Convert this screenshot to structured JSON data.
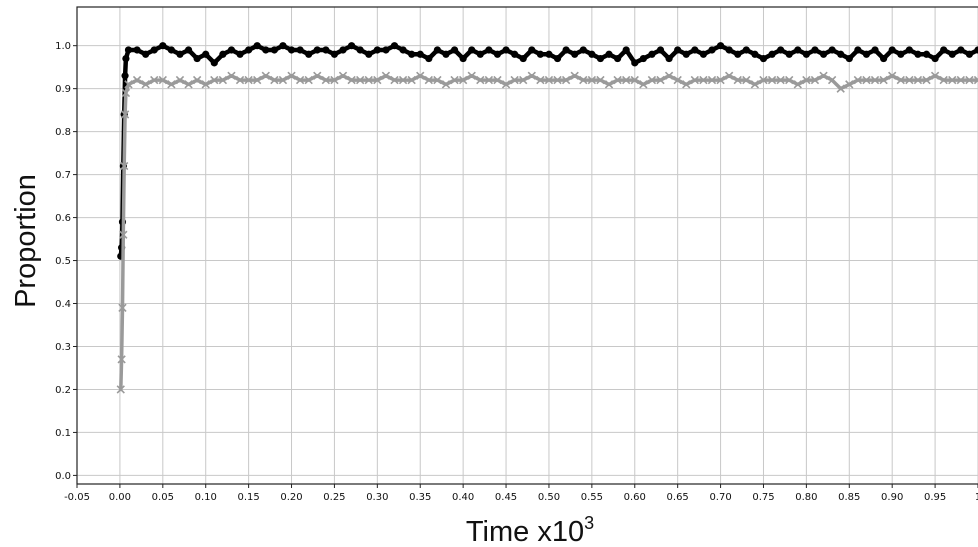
{
  "colors": {
    "background": "#ffffff",
    "grid": "#c8c8c8",
    "frame": "#222222",
    "series_black": "#000000",
    "series_gray": "#9a9a9a"
  },
  "chart_data": {
    "type": "scatter",
    "title": "",
    "xlabel": "Time x10",
    "xlabel_superscript": "3",
    "ylabel": "Proportion",
    "xlim": [
      -0.05,
      1.0
    ],
    "ylim": [
      -0.02,
      1.09
    ],
    "grid": true,
    "legend": "none",
    "x_ticks": [
      -0.05,
      0.0,
      0.05,
      0.1,
      0.15,
      0.2,
      0.25,
      0.3,
      0.35,
      0.4,
      0.45,
      0.5,
      0.55,
      0.6,
      0.65,
      0.7,
      0.75,
      0.8,
      0.85,
      0.9,
      0.95,
      1.0
    ],
    "x_tick_labels": [
      "-0.05",
      "0.00",
      "0.05",
      "0.10",
      "0.15",
      "0.20",
      "0.25",
      "0.30",
      "0.35",
      "0.40",
      "0.45",
      "0.50",
      "0.55",
      "0.60",
      "0.65",
      "0.70",
      "0.75",
      "0.80",
      "0.85",
      "0.90",
      "0.95",
      "1"
    ],
    "y_ticks": [
      0.0,
      0.1,
      0.2,
      0.3,
      0.4,
      0.5,
      0.6,
      0.7,
      0.8,
      0.9,
      1.0
    ],
    "y_tick_labels": [
      "0.0",
      "0.1",
      "0.2",
      "0.3",
      "0.4",
      "0.5",
      "0.6",
      "0.7",
      "0.8",
      "0.9",
      "1.0"
    ],
    "series": [
      {
        "marker": "circle",
        "color": "#000000",
        "x": [
          0.001,
          0.002,
          0.003,
          0.004,
          0.005,
          0.006,
          0.007,
          0.01,
          0.02,
          0.03,
          0.04,
          0.05,
          0.06,
          0.07,
          0.08,
          0.09,
          0.1,
          0.11,
          0.12,
          0.13,
          0.14,
          0.15,
          0.16,
          0.17,
          0.18,
          0.19,
          0.2,
          0.21,
          0.22,
          0.23,
          0.24,
          0.25,
          0.26,
          0.27,
          0.28,
          0.29,
          0.3,
          0.31,
          0.32,
          0.33,
          0.34,
          0.35,
          0.36,
          0.37,
          0.38,
          0.39,
          0.4,
          0.41,
          0.42,
          0.43,
          0.44,
          0.45,
          0.46,
          0.47,
          0.48,
          0.49,
          0.5,
          0.51,
          0.52,
          0.53,
          0.54,
          0.55,
          0.56,
          0.57,
          0.58,
          0.59,
          0.6,
          0.61,
          0.62,
          0.63,
          0.64,
          0.65,
          0.66,
          0.67,
          0.68,
          0.69,
          0.7,
          0.71,
          0.72,
          0.73,
          0.74,
          0.75,
          0.76,
          0.77,
          0.78,
          0.79,
          0.8,
          0.81,
          0.82,
          0.83,
          0.84,
          0.85,
          0.86,
          0.87,
          0.88,
          0.89,
          0.9,
          0.91,
          0.92,
          0.93,
          0.94,
          0.95,
          0.96,
          0.97,
          0.98,
          0.99,
          1.0
        ],
        "y": [
          0.51,
          0.53,
          0.59,
          0.72,
          0.84,
          0.93,
          0.97,
          0.99,
          0.99,
          0.98,
          0.99,
          1.0,
          0.99,
          0.98,
          0.99,
          0.97,
          0.98,
          0.96,
          0.98,
          0.99,
          0.98,
          0.99,
          1.0,
          0.99,
          0.99,
          1.0,
          0.99,
          0.99,
          0.98,
          0.99,
          0.99,
          0.98,
          0.99,
          1.0,
          0.99,
          0.98,
          0.99,
          0.99,
          1.0,
          0.99,
          0.98,
          0.98,
          0.97,
          0.99,
          0.98,
          0.99,
          0.97,
          0.99,
          0.98,
          0.99,
          0.98,
          0.99,
          0.98,
          0.97,
          0.99,
          0.98,
          0.98,
          0.97,
          0.99,
          0.98,
          0.99,
          0.98,
          0.97,
          0.98,
          0.97,
          0.99,
          0.96,
          0.97,
          0.98,
          0.99,
          0.97,
          0.99,
          0.98,
          0.99,
          0.98,
          0.99,
          1.0,
          0.99,
          0.98,
          0.99,
          0.98,
          0.97,
          0.98,
          0.99,
          0.98,
          0.99,
          0.98,
          0.99,
          0.98,
          0.99,
          0.98,
          0.97,
          0.99,
          0.98,
          0.99,
          0.97,
          0.99,
          0.98,
          0.99,
          0.98,
          0.98,
          0.97,
          0.99,
          0.98,
          0.99,
          0.98,
          0.99
        ]
      },
      {
        "marker": "x",
        "color": "#9a9a9a",
        "x": [
          0.001,
          0.002,
          0.003,
          0.004,
          0.005,
          0.006,
          0.007,
          0.01,
          0.02,
          0.03,
          0.04,
          0.05,
          0.06,
          0.07,
          0.08,
          0.09,
          0.1,
          0.11,
          0.12,
          0.13,
          0.14,
          0.15,
          0.16,
          0.17,
          0.18,
          0.19,
          0.2,
          0.21,
          0.22,
          0.23,
          0.24,
          0.25,
          0.26,
          0.27,
          0.28,
          0.29,
          0.3,
          0.31,
          0.32,
          0.33,
          0.34,
          0.35,
          0.36,
          0.37,
          0.38,
          0.39,
          0.4,
          0.41,
          0.42,
          0.43,
          0.44,
          0.45,
          0.46,
          0.47,
          0.48,
          0.49,
          0.5,
          0.51,
          0.52,
          0.53,
          0.54,
          0.55,
          0.56,
          0.57,
          0.58,
          0.59,
          0.6,
          0.61,
          0.62,
          0.63,
          0.64,
          0.65,
          0.66,
          0.67,
          0.68,
          0.69,
          0.7,
          0.71,
          0.72,
          0.73,
          0.74,
          0.75,
          0.76,
          0.77,
          0.78,
          0.79,
          0.8,
          0.81,
          0.82,
          0.83,
          0.84,
          0.85,
          0.86,
          0.87,
          0.88,
          0.89,
          0.9,
          0.91,
          0.92,
          0.93,
          0.94,
          0.95,
          0.96,
          0.97,
          0.98,
          0.99,
          1.0
        ],
        "y": [
          0.2,
          0.27,
          0.39,
          0.56,
          0.72,
          0.84,
          0.89,
          0.91,
          0.92,
          0.91,
          0.92,
          0.92,
          0.91,
          0.92,
          0.91,
          0.92,
          0.91,
          0.92,
          0.92,
          0.93,
          0.92,
          0.92,
          0.92,
          0.93,
          0.92,
          0.92,
          0.93,
          0.92,
          0.92,
          0.93,
          0.92,
          0.92,
          0.93,
          0.92,
          0.92,
          0.92,
          0.92,
          0.93,
          0.92,
          0.92,
          0.92,
          0.93,
          0.92,
          0.92,
          0.91,
          0.92,
          0.92,
          0.93,
          0.92,
          0.92,
          0.92,
          0.91,
          0.92,
          0.92,
          0.93,
          0.92,
          0.92,
          0.92,
          0.92,
          0.93,
          0.92,
          0.92,
          0.92,
          0.91,
          0.92,
          0.92,
          0.92,
          0.91,
          0.92,
          0.92,
          0.93,
          0.92,
          0.91,
          0.92,
          0.92,
          0.92,
          0.92,
          0.93,
          0.92,
          0.92,
          0.91,
          0.92,
          0.92,
          0.92,
          0.92,
          0.91,
          0.92,
          0.92,
          0.93,
          0.92,
          0.9,
          0.91,
          0.92,
          0.92,
          0.92,
          0.92,
          0.93,
          0.92,
          0.92,
          0.92,
          0.92,
          0.93,
          0.92,
          0.92,
          0.92,
          0.92,
          0.92
        ]
      }
    ]
  }
}
